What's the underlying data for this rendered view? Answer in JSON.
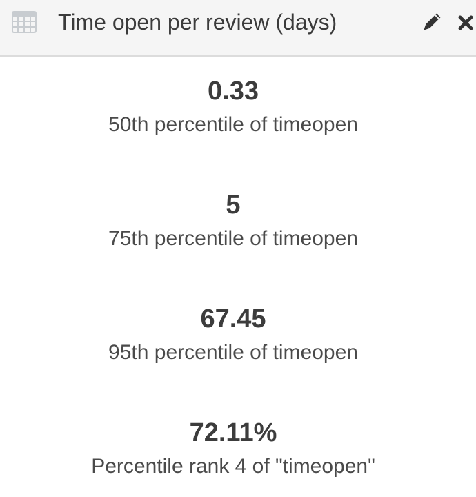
{
  "panel": {
    "title": "Time open per review (days)",
    "icons": {
      "type": "table-icon",
      "edit": "pencil-icon",
      "close": "close-icon"
    },
    "colors": {
      "header_bg": "#f5f5f5",
      "text": "#3a3a3a",
      "icon": "#333333",
      "table_icon": "#c8ccd0"
    }
  },
  "metrics": [
    {
      "value": "0.33",
      "label": "50th percentile of timeopen"
    },
    {
      "value": "5",
      "label": "75th percentile of timeopen"
    },
    {
      "value": "67.45",
      "label": "95th percentile of timeopen"
    },
    {
      "value": "72.11%",
      "label": "Percentile rank 4 of \"timeopen\""
    }
  ]
}
